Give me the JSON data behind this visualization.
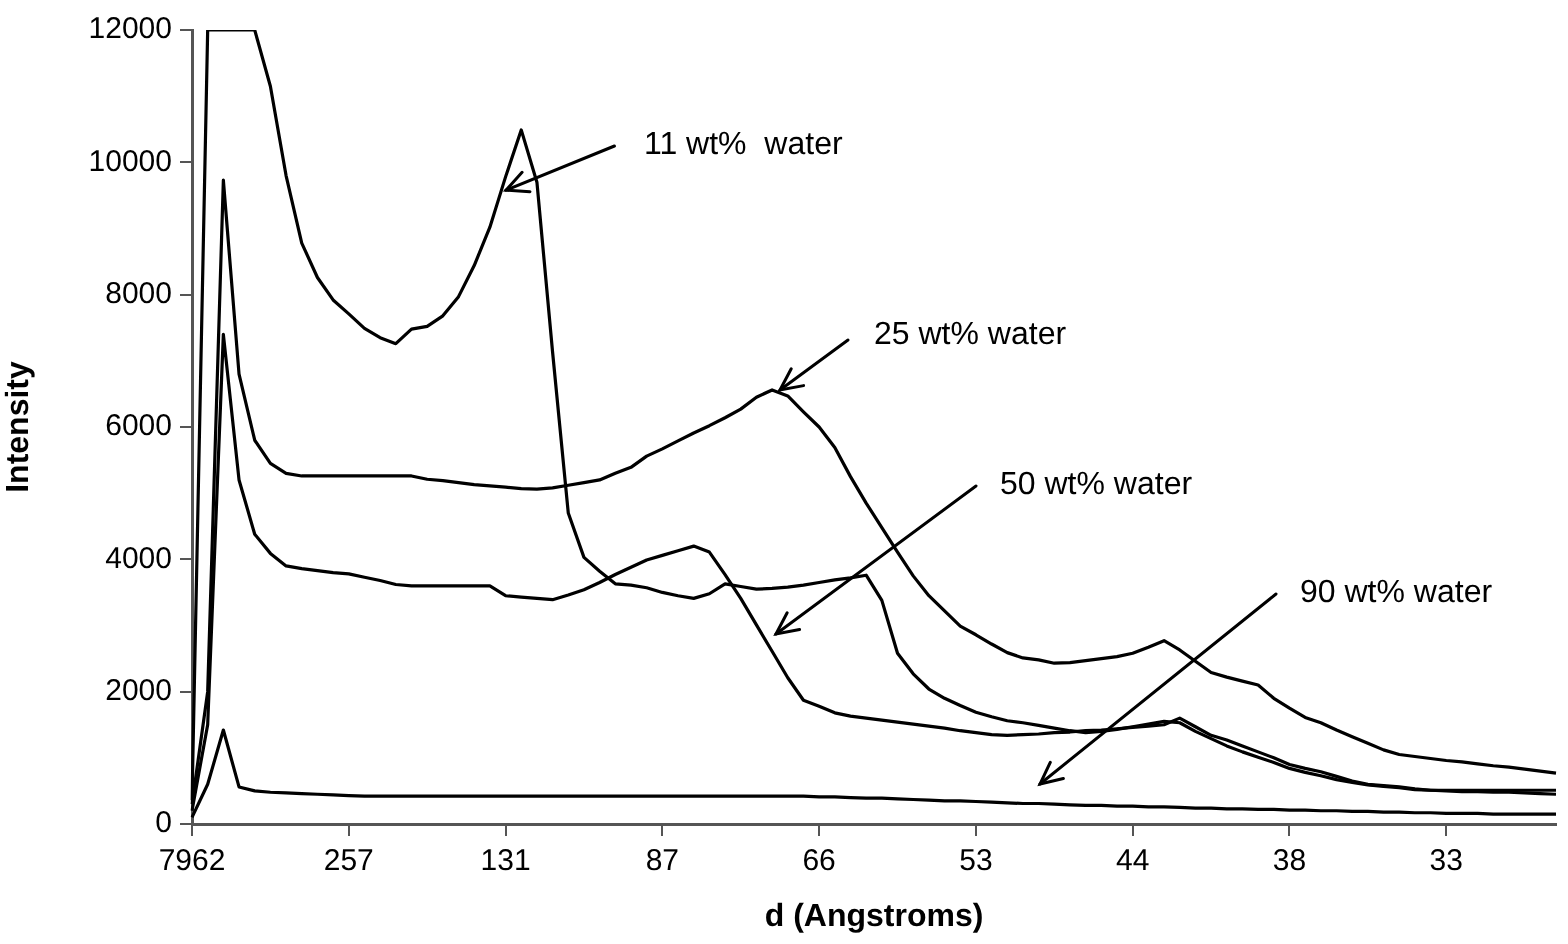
{
  "chart_data": {
    "type": "line",
    "xlabel": "d (Angstroms)",
    "ylabel": "Intensity",
    "categories": [
      "7962",
      null,
      null,
      null,
      null,
      null,
      null,
      null,
      null,
      null,
      "257",
      null,
      null,
      null,
      null,
      null,
      null,
      null,
      null,
      null,
      "131",
      null,
      null,
      null,
      null,
      null,
      null,
      null,
      null,
      null,
      "87",
      null,
      null,
      null,
      null,
      null,
      null,
      null,
      null,
      null,
      "66",
      null,
      null,
      null,
      null,
      null,
      null,
      null,
      null,
      null,
      "53",
      null,
      null,
      null,
      null,
      null,
      null,
      null,
      null,
      null,
      "44",
      null,
      null,
      null,
      null,
      null,
      null,
      null,
      null,
      null,
      "38",
      null,
      null,
      null,
      null,
      null,
      null,
      null,
      null,
      null,
      "33",
      null,
      null,
      null,
      null,
      null,
      null,
      null
    ],
    "ylim": [
      0,
      12000
    ],
    "yticks": [
      0,
      2000,
      4000,
      6000,
      8000,
      10000,
      12000
    ],
    "grid": false,
    "legend": false,
    "marker": "none",
    "line_style": "solid",
    "series": [
      {
        "color": "#000000",
        "values": [
          360,
          12000,
          12000,
          12000,
          12000,
          11150,
          9800,
          8780,
          8260,
          7920,
          7710,
          7490,
          7350,
          7260,
          7480,
          7520,
          7680,
          7970,
          8440,
          9020,
          9780,
          10490,
          9700,
          7130,
          4700,
          4030,
          3820,
          3630,
          3610,
          3570,
          3500,
          3450,
          3410,
          3480,
          3630,
          3590,
          3550,
          3560,
          3580,
          3610,
          3650,
          3690,
          3720,
          3760,
          3380,
          2580,
          2270,
          2040,
          1900,
          1790,
          1690,
          1620,
          1560,
          1530,
          1490,
          1450,
          1410,
          1380,
          1400,
          1430,
          1470,
          1510,
          1550,
          1530,
          1400,
          1290,
          1180,
          1090,
          1010,
          930,
          840,
          780,
          730,
          670,
          630,
          590,
          570,
          550,
          520,
          510,
          500,
          490,
          490,
          480,
          480,
          470,
          460,
          450
        ]
      },
      {
        "color": "#000000",
        "values": [
          300,
          2000,
          9730,
          6800,
          5800,
          5450,
          5300,
          5260,
          5260,
          5260,
          5260,
          5260,
          5260,
          5260,
          5260,
          5210,
          5190,
          5160,
          5130,
          5110,
          5090,
          5070,
          5060,
          5080,
          5120,
          5160,
          5200,
          5300,
          5390,
          5560,
          5670,
          5790,
          5910,
          6020,
          6140,
          6270,
          6450,
          6560,
          6470,
          6230,
          6000,
          5690,
          5250,
          4850,
          4480,
          4110,
          3750,
          3450,
          3220,
          2990,
          2860,
          2720,
          2590,
          2510,
          2480,
          2430,
          2440,
          2470,
          2500,
          2530,
          2580,
          2670,
          2770,
          2630,
          2460,
          2290,
          2220,
          2160,
          2100,
          1900,
          1750,
          1610,
          1530,
          1420,
          1320,
          1220,
          1120,
          1050,
          1020,
          990,
          960,
          940,
          910,
          880,
          860,
          830,
          800,
          770
        ]
      },
      {
        "color": "#000000",
        "values": [
          200,
          1500,
          7400,
          5200,
          4380,
          4090,
          3900,
          3860,
          3830,
          3800,
          3780,
          3730,
          3680,
          3620,
          3600,
          3600,
          3600,
          3600,
          3600,
          3600,
          3450,
          3430,
          3410,
          3390,
          3460,
          3540,
          3650,
          3770,
          3880,
          3990,
          4060,
          4130,
          4200,
          4110,
          3770,
          3410,
          3010,
          2610,
          2210,
          1870,
          1780,
          1680,
          1630,
          1600,
          1570,
          1540,
          1510,
          1480,
          1450,
          1410,
          1380,
          1350,
          1340,
          1350,
          1360,
          1380,
          1390,
          1410,
          1420,
          1440,
          1460,
          1480,
          1500,
          1600,
          1470,
          1340,
          1270,
          1180,
          1090,
          1000,
          900,
          840,
          790,
          720,
          650,
          600,
          580,
          560,
          530,
          510,
          510,
          510,
          510,
          510,
          510,
          510,
          510,
          510
        ]
      },
      {
        "color": "#000000",
        "values": [
          100,
          600,
          1420,
          560,
          500,
          480,
          470,
          460,
          450,
          440,
          430,
          420,
          420,
          420,
          420,
          420,
          420,
          420,
          420,
          420,
          420,
          420,
          420,
          420,
          420,
          420,
          420,
          420,
          420,
          420,
          420,
          420,
          420,
          420,
          420,
          420,
          420,
          420,
          420,
          420,
          410,
          410,
          400,
          390,
          390,
          380,
          370,
          360,
          350,
          350,
          340,
          330,
          320,
          310,
          310,
          300,
          290,
          280,
          280,
          270,
          270,
          260,
          260,
          250,
          240,
          240,
          230,
          230,
          220,
          220,
          210,
          210,
          200,
          200,
          190,
          190,
          180,
          180,
          170,
          170,
          160,
          160,
          160,
          150,
          150,
          150,
          150,
          150
        ]
      }
    ],
    "annotations": [
      {
        "text": "11 wt%  water",
        "x": "131",
        "y": 9580
      },
      "25 wt% water",
      "50 wt% water",
      "90 wt% water"
    ]
  }
}
